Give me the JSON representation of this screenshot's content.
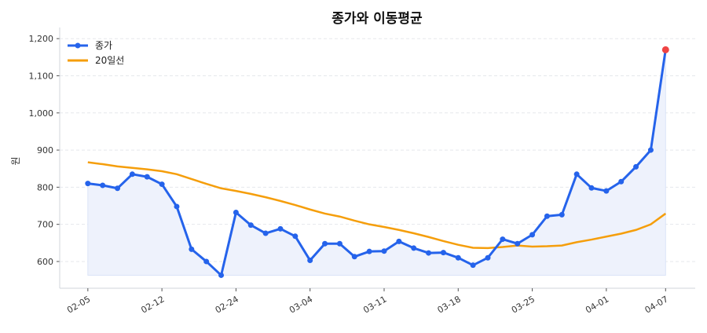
{
  "chart_data": {
    "type": "line",
    "title": "종가와 이동평균",
    "xlabel": "",
    "ylabel": "원",
    "ylim": [
      528,
      1230
    ],
    "grid": true,
    "legend_placement": "top-left",
    "x": [
      "02-05",
      "02-06",
      "02-09",
      "02-10",
      "02-11",
      "02-12",
      "02-13",
      "02-19",
      "02-20",
      "02-23",
      "02-24",
      "02-25",
      "02-26",
      "02-27",
      "03-03",
      "03-04",
      "03-05",
      "03-06",
      "03-09",
      "03-10",
      "03-11",
      "03-12",
      "03-13",
      "03-16",
      "03-17",
      "03-18",
      "03-19",
      "03-20",
      "03-23",
      "03-24",
      "03-25",
      "03-26",
      "03-27",
      "03-30",
      "03-31",
      "04-01",
      "04-02",
      "04-03",
      "04-06",
      "04-07"
    ],
    "x_tick_labels": [
      "02-05",
      "02-12",
      "02-24",
      "03-04",
      "03-11",
      "03-18",
      "03-25",
      "04-01",
      "04-07"
    ],
    "y_ticks": [
      600,
      700,
      800,
      900,
      1000,
      1100,
      1200
    ],
    "y_tick_labels": [
      "600",
      "700",
      "800",
      "900",
      "1,000",
      "1,100",
      "1,200"
    ],
    "series": [
      {
        "name": "종가",
        "color": "#2563eb",
        "marker": "circle",
        "fill": "#eef2fc",
        "values": [
          810,
          805,
          797,
          835,
          828,
          808,
          748,
          633,
          600,
          563,
          732,
          698,
          676,
          688,
          668,
          603,
          648,
          648,
          613,
          627,
          628,
          654,
          636,
          623,
          624,
          610,
          590,
          610,
          660,
          648,
          672,
          722,
          726,
          835,
          798,
          790,
          815,
          855,
          900,
          1170
        ]
      },
      {
        "name": "20일선",
        "color": "#f59e0b",
        "values": [
          867,
          862,
          856,
          852,
          848,
          843,
          835,
          822,
          809,
          797,
          790,
          782,
          773,
          763,
          752,
          740,
          729,
          721,
          710,
          700,
          693,
          685,
          676,
          666,
          655,
          645,
          637,
          636,
          639,
          643,
          640,
          641,
          643,
          652,
          659,
          667,
          675,
          685,
          700,
          729
        ]
      }
    ],
    "highlight": {
      "index": 39,
      "color": "#ef4444"
    }
  }
}
